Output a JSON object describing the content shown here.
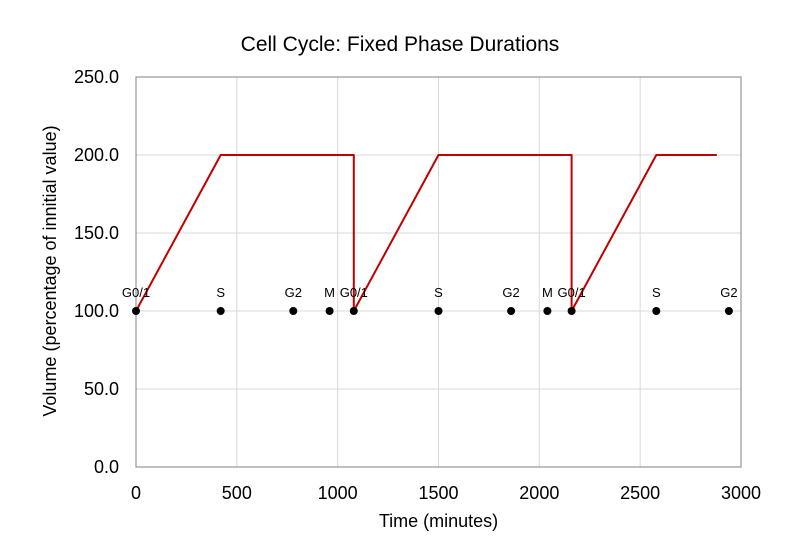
{
  "chart_data": {
    "type": "line",
    "title": "Cell Cycle: Fixed Phase Durations",
    "xlabel": "Time (minutes)",
    "ylabel": "Volume (percentage of innitial value)",
    "xlim": [
      0,
      3000
    ],
    "ylim": [
      0,
      250
    ],
    "x_ticks": [
      "0",
      "500",
      "1000",
      "1500",
      "2000",
      "2500",
      "3000"
    ],
    "y_ticks": [
      "0.0",
      "50.0",
      "100.0",
      "150.0",
      "200.0",
      "250.0"
    ],
    "grid": true,
    "legend": "none",
    "series": [
      {
        "color": "#c00000",
        "x": [
          0,
          420,
          1080,
          1080,
          1500,
          2160,
          2160,
          2580,
          2880
        ],
        "y": [
          100,
          200,
          200,
          100,
          200,
          200,
          100,
          200,
          200
        ]
      }
    ],
    "phase_markers": {
      "color": "#000000",
      "points": [
        {
          "x": 0,
          "y": 100,
          "label": "G0/1"
        },
        {
          "x": 420,
          "y": 100,
          "label": "S"
        },
        {
          "x": 780,
          "y": 100,
          "label": "G2"
        },
        {
          "x": 960,
          "y": 100,
          "label": "M"
        },
        {
          "x": 1080,
          "y": 100,
          "label": "G0/1"
        },
        {
          "x": 1500,
          "y": 100,
          "label": "S"
        },
        {
          "x": 1860,
          "y": 100,
          "label": "G2"
        },
        {
          "x": 2040,
          "y": 100,
          "label": "M"
        },
        {
          "x": 2160,
          "y": 100,
          "label": "G0/1"
        },
        {
          "x": 2580,
          "y": 100,
          "label": "S"
        },
        {
          "x": 2940,
          "y": 100,
          "label": "G2"
        }
      ]
    }
  }
}
